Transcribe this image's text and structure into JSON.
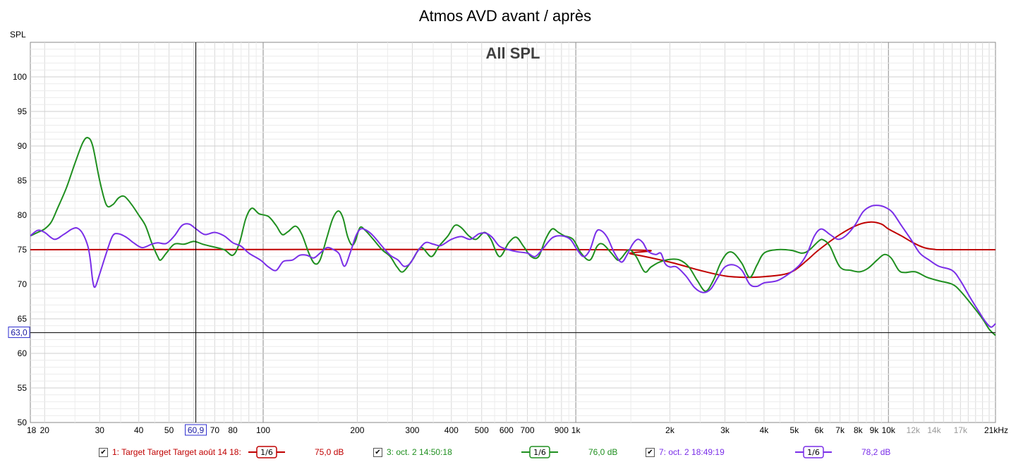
{
  "chart_data": {
    "type": "line",
    "title": "Atmos AVD avant / après",
    "subtitle": "All SPL",
    "ylabel": "SPL",
    "xunit": "Hz",
    "x_scale": "log",
    "xlim": [
      18,
      22000
    ],
    "ylim": [
      50,
      105
    ],
    "grid": true,
    "x_tick_labels": [
      {
        "f": 18,
        "t": "18"
      },
      {
        "f": 20,
        "t": "20"
      },
      {
        "f": 30,
        "t": "30"
      },
      {
        "f": 40,
        "t": "40"
      },
      {
        "f": 50,
        "t": "50"
      },
      {
        "f": 70,
        "t": "70"
      },
      {
        "f": 80,
        "t": "80"
      },
      {
        "f": 100,
        "t": "100"
      },
      {
        "f": 200,
        "t": "200"
      },
      {
        "f": 300,
        "t": "300"
      },
      {
        "f": 400,
        "t": "400"
      },
      {
        "f": 500,
        "t": "500"
      },
      {
        "f": 600,
        "t": "600"
      },
      {
        "f": 700,
        "t": "700"
      },
      {
        "f": 900,
        "t": "900"
      },
      {
        "f": 1000,
        "t": "1k"
      },
      {
        "f": 2000,
        "t": "2k"
      },
      {
        "f": 3000,
        "t": "3k"
      },
      {
        "f": 4000,
        "t": "4k"
      },
      {
        "f": 5000,
        "t": "5k"
      },
      {
        "f": 6000,
        "t": "6k"
      },
      {
        "f": 7000,
        "t": "7k"
      },
      {
        "f": 8000,
        "t": "8k"
      },
      {
        "f": 9000,
        "t": "9k"
      },
      {
        "f": 10000,
        "t": "10k"
      },
      {
        "f": 12000,
        "t": "12k",
        "grey": true
      },
      {
        "f": 14000,
        "t": "14k",
        "grey": true
      },
      {
        "f": 17000,
        "t": "17k",
        "grey": true
      },
      {
        "f": 21000,
        "t": "21kHz"
      }
    ],
    "y_ticks": [
      50,
      55,
      60,
      65,
      70,
      75,
      80,
      85,
      90,
      95,
      100
    ],
    "cursor": {
      "x": 60.9,
      "y": 63.0,
      "x_label": "60,9",
      "y_label": "63,0"
    },
    "series": [
      {
        "name": "1: Target Target Target août 14 18:",
        "color": "#c00000",
        "smoothing": "1/6",
        "level": "75,0 dB",
        "points": [
          [
            18,
            75
          ],
          [
            1200,
            75
          ],
          [
            1500,
            74.4
          ],
          [
            2000,
            73.2
          ],
          [
            2500,
            72
          ],
          [
            3000,
            71.2
          ],
          [
            3500,
            71
          ],
          [
            4000,
            71.1
          ],
          [
            4600,
            71.4
          ],
          [
            5000,
            72
          ],
          [
            5500,
            73.5
          ],
          [
            6000,
            75
          ],
          [
            7000,
            77.2
          ],
          [
            8000,
            78.6
          ],
          [
            8800,
            79
          ],
          [
            9500,
            78.7
          ],
          [
            10000,
            78
          ],
          [
            11000,
            77
          ],
          [
            12000,
            76
          ],
          [
            13000,
            75.3
          ],
          [
            14000,
            75.05
          ],
          [
            15000,
            75
          ],
          [
            22000,
            75
          ]
        ]
      },
      {
        "name": "3: oct. 2 14:50:18",
        "color": "#1f8f1f",
        "smoothing": "1/6",
        "level": "76,0 dB",
        "points": [
          [
            18,
            77
          ],
          [
            19,
            77.5
          ],
          [
            20,
            78
          ],
          [
            21,
            79
          ],
          [
            22,
            81
          ],
          [
            23.5,
            84
          ],
          [
            25,
            87.5
          ],
          [
            26.5,
            90.5
          ],
          [
            27.5,
            91.2
          ],
          [
            28.5,
            90
          ],
          [
            30,
            85
          ],
          [
            31.5,
            81.5
          ],
          [
            33,
            81.5
          ],
          [
            34.5,
            82.5
          ],
          [
            36,
            82.7
          ],
          [
            38,
            81.5
          ],
          [
            40,
            80
          ],
          [
            42,
            78.5
          ],
          [
            44,
            76
          ],
          [
            46,
            74
          ],
          [
            47,
            73.5
          ],
          [
            49,
            74.5
          ],
          [
            52,
            75.8
          ],
          [
            56,
            75.8
          ],
          [
            60,
            76.2
          ],
          [
            64,
            75.8
          ],
          [
            68,
            75.5
          ],
          [
            75,
            75
          ],
          [
            80,
            74.2
          ],
          [
            84,
            76
          ],
          [
            88,
            79.5
          ],
          [
            92,
            81
          ],
          [
            97,
            80.2
          ],
          [
            104,
            79.8
          ],
          [
            110,
            78.5
          ],
          [
            115,
            77.2
          ],
          [
            120,
            77.6
          ],
          [
            127,
            78.4
          ],
          [
            133,
            77.2
          ],
          [
            140,
            74.5
          ],
          [
            146,
            73
          ],
          [
            152,
            73.5
          ],
          [
            160,
            76.8
          ],
          [
            167,
            79.5
          ],
          [
            174,
            80.6
          ],
          [
            180,
            79.6
          ],
          [
            186,
            77
          ],
          [
            192,
            75.7
          ],
          [
            197,
            76.2
          ],
          [
            204,
            78.2
          ],
          [
            212,
            77.8
          ],
          [
            225,
            76.5
          ],
          [
            240,
            75
          ],
          [
            255,
            74
          ],
          [
            268,
            72.5
          ],
          [
            280,
            71.8
          ],
          [
            300,
            73.5
          ],
          [
            320,
            75.3
          ],
          [
            345,
            74
          ],
          [
            365,
            75.5
          ],
          [
            390,
            77
          ],
          [
            410,
            78.5
          ],
          [
            430,
            78.2
          ],
          [
            455,
            77
          ],
          [
            480,
            76.5
          ],
          [
            510,
            77.5
          ],
          [
            535,
            76.5
          ],
          [
            570,
            74
          ],
          [
            610,
            76
          ],
          [
            645,
            76.8
          ],
          [
            680,
            75.5
          ],
          [
            720,
            74
          ],
          [
            760,
            74
          ],
          [
            800,
            76.5
          ],
          [
            840,
            78
          ],
          [
            880,
            77.5
          ],
          [
            920,
            77
          ],
          [
            980,
            76.5
          ],
          [
            1040,
            74.5
          ],
          [
            1110,
            73.5
          ],
          [
            1170,
            75.5
          ],
          [
            1220,
            75.8
          ],
          [
            1300,
            74.5
          ],
          [
            1360,
            73.5
          ],
          [
            1400,
            73.8
          ],
          [
            1480,
            75
          ],
          [
            1560,
            74
          ],
          [
            1660,
            71.8
          ],
          [
            1740,
            72.5
          ],
          [
            1850,
            73.2
          ],
          [
            2000,
            73.6
          ],
          [
            2150,
            73.5
          ],
          [
            2300,
            72.5
          ],
          [
            2450,
            70.5
          ],
          [
            2600,
            69
          ],
          [
            2750,
            70.5
          ],
          [
            2900,
            73
          ],
          [
            3050,
            74.5
          ],
          [
            3200,
            74.5
          ],
          [
            3400,
            73
          ],
          [
            3600,
            71
          ],
          [
            3800,
            72.8
          ],
          [
            4000,
            74.5
          ],
          [
            4400,
            75
          ],
          [
            4900,
            74.9
          ],
          [
            5300,
            74.5
          ],
          [
            5600,
            75
          ],
          [
            6000,
            76.3
          ],
          [
            6200,
            76.4
          ],
          [
            6500,
            75.5
          ],
          [
            7000,
            72.5
          ],
          [
            7600,
            72
          ],
          [
            8100,
            71.8
          ],
          [
            8600,
            72.3
          ],
          [
            9200,
            73.5
          ],
          [
            9700,
            74.3
          ],
          [
            10200,
            73.8
          ],
          [
            10800,
            72
          ],
          [
            11300,
            71.7
          ],
          [
            12200,
            71.8
          ],
          [
            13300,
            71
          ],
          [
            14500,
            70.5
          ],
          [
            16000,
            70
          ],
          [
            17000,
            69
          ],
          [
            18500,
            67
          ],
          [
            20000,
            65
          ],
          [
            21000,
            63.5
          ],
          [
            22000,
            62.6
          ]
        ]
      },
      {
        "name": "7: oct. 2 18:49:19",
        "color": "#7a2ee8",
        "smoothing": "1/6",
        "level": "78,2 dB",
        "points": [
          [
            18,
            77
          ],
          [
            19,
            77.8
          ],
          [
            20,
            77.5
          ],
          [
            21.5,
            76.5
          ],
          [
            23,
            77.2
          ],
          [
            24.5,
            78
          ],
          [
            25.5,
            78.1
          ],
          [
            26.5,
            77.3
          ],
          [
            27.5,
            75.5
          ],
          [
            28,
            73.5
          ],
          [
            28.5,
            70.5
          ],
          [
            29,
            69.6
          ],
          [
            30,
            71.5
          ],
          [
            31.5,
            74.5
          ],
          [
            33,
            77
          ],
          [
            34.5,
            77.3
          ],
          [
            36.5,
            76.8
          ],
          [
            38.5,
            76
          ],
          [
            41,
            75.3
          ],
          [
            44,
            75.8
          ],
          [
            46,
            76
          ],
          [
            49,
            75.9
          ],
          [
            52,
            77
          ],
          [
            55,
            78.5
          ],
          [
            58,
            78.7
          ],
          [
            61,
            78
          ],
          [
            65,
            77.2
          ],
          [
            70,
            77.5
          ],
          [
            75,
            77
          ],
          [
            80,
            76
          ],
          [
            85,
            75.5
          ],
          [
            90,
            74.5
          ],
          [
            98,
            73.5
          ],
          [
            104,
            72.5
          ],
          [
            110,
            72
          ],
          [
            116,
            73.3
          ],
          [
            124,
            73.5
          ],
          [
            131,
            74.2
          ],
          [
            138,
            74.2
          ],
          [
            145,
            73.8
          ],
          [
            152,
            74.5
          ],
          [
            160,
            75.3
          ],
          [
            168,
            75
          ],
          [
            175,
            74.4
          ],
          [
            182,
            72.6
          ],
          [
            190,
            74.6
          ],
          [
            198,
            77
          ],
          [
            205,
            78
          ],
          [
            214,
            77.8
          ],
          [
            225,
            77
          ],
          [
            240,
            75.5
          ],
          [
            255,
            74.2
          ],
          [
            270,
            73.5
          ],
          [
            282,
            72.6
          ],
          [
            295,
            73
          ],
          [
            310,
            74.6
          ],
          [
            330,
            76
          ],
          [
            350,
            75.8
          ],
          [
            370,
            75.6
          ],
          [
            400,
            76.5
          ],
          [
            430,
            76.9
          ],
          [
            460,
            76.5
          ],
          [
            490,
            77.3
          ],
          [
            515,
            77.4
          ],
          [
            540,
            76.8
          ],
          [
            570,
            75.5
          ],
          [
            610,
            75
          ],
          [
            650,
            74.7
          ],
          [
            700,
            74.5
          ],
          [
            740,
            74
          ],
          [
            780,
            75
          ],
          [
            840,
            76.7
          ],
          [
            900,
            77
          ],
          [
            960,
            76.5
          ],
          [
            1010,
            75
          ],
          [
            1060,
            74
          ],
          [
            1110,
            75
          ],
          [
            1160,
            77.5
          ],
          [
            1200,
            77.8
          ],
          [
            1260,
            76.8
          ],
          [
            1330,
            74.5
          ],
          [
            1400,
            73.2
          ],
          [
            1460,
            74.3
          ],
          [
            1520,
            75.8
          ],
          [
            1580,
            76.5
          ],
          [
            1640,
            76
          ],
          [
            1700,
            74.8
          ],
          [
            1800,
            74.3
          ],
          [
            1870,
            74.5
          ],
          [
            1930,
            73
          ],
          [
            2000,
            72.5
          ],
          [
            2100,
            72.5
          ],
          [
            2250,
            71.2
          ],
          [
            2400,
            69.5
          ],
          [
            2550,
            68.8
          ],
          [
            2700,
            69.3
          ],
          [
            2850,
            71
          ],
          [
            3000,
            72.5
          ],
          [
            3200,
            72.8
          ],
          [
            3400,
            72
          ],
          [
            3600,
            70
          ],
          [
            3800,
            69.7
          ],
          [
            4000,
            70.2
          ],
          [
            4400,
            70.5
          ],
          [
            4800,
            71.5
          ],
          [
            5200,
            72.8
          ],
          [
            5500,
            74.5
          ],
          [
            5800,
            77
          ],
          [
            6100,
            78
          ],
          [
            6500,
            77.2
          ],
          [
            6900,
            76.5
          ],
          [
            7300,
            77
          ],
          [
            7800,
            78.5
          ],
          [
            8300,
            80.5
          ],
          [
            8800,
            81.3
          ],
          [
            9300,
            81.4
          ],
          [
            9800,
            81.1
          ],
          [
            10300,
            80.4
          ],
          [
            11000,
            78.5
          ],
          [
            11800,
            76.5
          ],
          [
            12600,
            74.5
          ],
          [
            13500,
            73.5
          ],
          [
            14500,
            72.6
          ],
          [
            16000,
            72
          ],
          [
            17000,
            70.5
          ],
          [
            18300,
            68
          ],
          [
            19500,
            66
          ],
          [
            20500,
            64.5
          ],
          [
            21300,
            63.8
          ],
          [
            22000,
            64.3
          ]
        ]
      }
    ]
  }
}
